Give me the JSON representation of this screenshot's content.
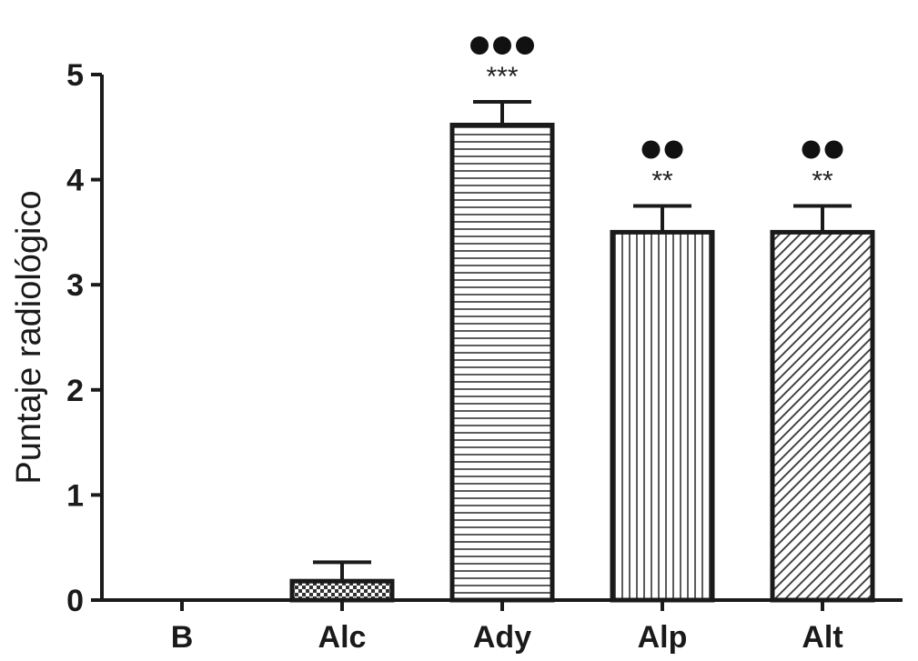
{
  "chart_data": {
    "type": "bar",
    "title": "",
    "xlabel": "",
    "ylabel": "Puntaje radiológico",
    "ylim": [
      0,
      5
    ],
    "yticks": [
      0,
      1,
      2,
      3,
      4,
      5
    ],
    "grid": false,
    "categories": [
      "B",
      "Alc",
      "Ady",
      "Alp",
      "Alt"
    ],
    "values": [
      0,
      0.18,
      4.52,
      3.5,
      3.5
    ],
    "errors": [
      0,
      0.18,
      0.22,
      0.25,
      0.25
    ],
    "patterns": [
      "none",
      "checker",
      "horizontal-lines",
      "vertical-lines",
      "diagonal-lines"
    ],
    "stars": [
      "",
      "",
      "***",
      "**",
      "**"
    ],
    "dots": [
      0,
      0,
      3,
      2,
      2
    ]
  },
  "colors": {
    "ink": "#1a1a1a",
    "background": "#ffffff"
  }
}
